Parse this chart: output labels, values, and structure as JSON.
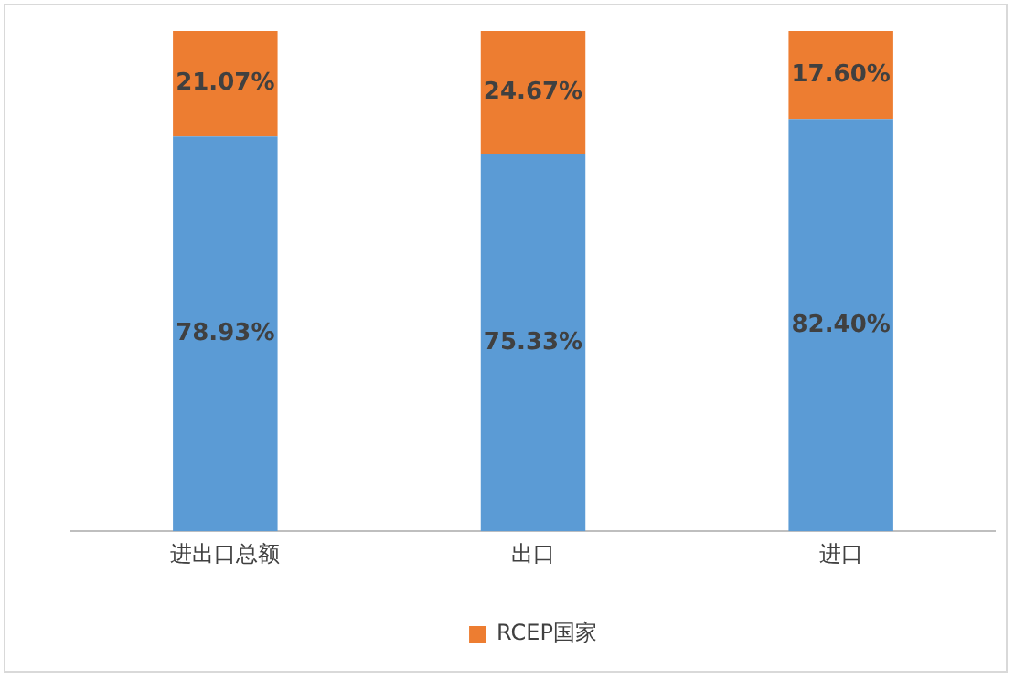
{
  "chart_data": {
    "type": "bar",
    "stacked": true,
    "categories": [
      "进出口总额",
      "出口",
      "进口"
    ],
    "series": [
      {
        "color": "#5b9bd5",
        "values": [
          78.93,
          75.33,
          82.4
        ],
        "value_labels": [
          "78.93%",
          "75.33%",
          "82.40%"
        ]
      },
      {
        "name": "RCEP国家",
        "color": "#ed7d31",
        "values": [
          21.07,
          24.67,
          17.6
        ],
        "value_labels": [
          "21.07%",
          "24.67%",
          "17.60%"
        ]
      }
    ],
    "ylim": [
      0,
      100
    ],
    "tick_labels": "x",
    "grid": false,
    "legend": "bottom"
  }
}
